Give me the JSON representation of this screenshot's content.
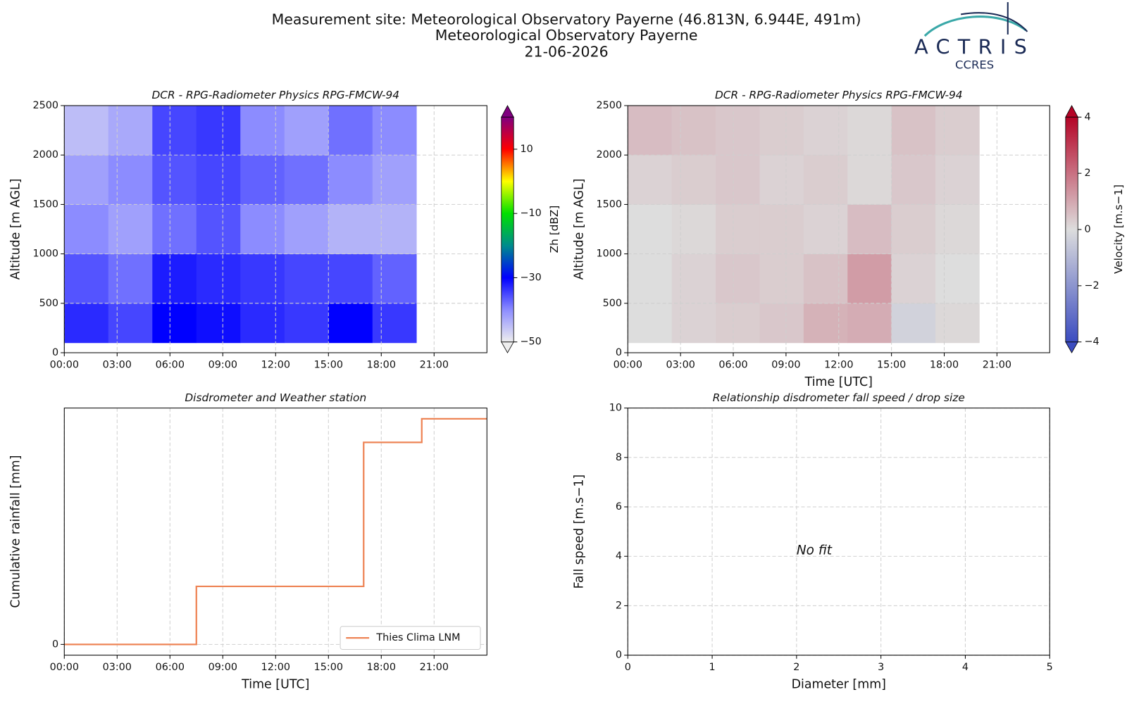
{
  "header": {
    "title_lines": [
      "Measurement site: Meteorological Observatory Payerne (46.813N, 6.944E, 491m)",
      "Meteorological Observatory Payerne",
      "21-06-2026"
    ],
    "logo": {
      "name": "ACTRIS",
      "subtitle": "CCRES"
    }
  },
  "chart_data": [
    {
      "type": "heatmap",
      "title": "DCR - RPG-Radiometer Physics RPG-FMCW-94",
      "ylabel": "Altitude [m AGL]",
      "xlim": [
        0,
        24
      ],
      "xticks": [
        {
          "value": 0,
          "label": "00:00"
        },
        {
          "value": 3,
          "label": "03:00"
        },
        {
          "value": 6,
          "label": "06:00"
        },
        {
          "value": 9,
          "label": "09:00"
        },
        {
          "value": 12,
          "label": "12:00"
        },
        {
          "value": 15,
          "label": "15:00"
        },
        {
          "value": 18,
          "label": "18:00"
        },
        {
          "value": 21,
          "label": "21:00"
        }
      ],
      "ylim": [
        0,
        2500
      ],
      "yticks": [
        0,
        500,
        1000,
        1500,
        2000,
        2500
      ],
      "grid": true,
      "x": [
        0,
        2.5,
        5,
        7.5,
        10,
        12.5,
        15,
        17.5,
        20
      ],
      "y": [
        100,
        500,
        1000,
        1500,
        2000,
        2500
      ],
      "z": [
        [
          -33,
          -35,
          -30,
          -31,
          -33,
          -34,
          -30,
          -34
        ],
        [
          -36,
          -38,
          -32,
          -33,
          -34,
          -35,
          -35,
          -37
        ],
        [
          -40,
          -42,
          -38,
          -36,
          -40,
          -42,
          -44,
          -44
        ],
        [
          -42,
          -40,
          -36,
          -35,
          -37,
          -38,
          -40,
          -42
        ],
        [
          -45,
          -43,
          -35,
          -34,
          -40,
          -42,
          -38,
          -40
        ]
      ],
      "clim": [
        -50,
        20
      ],
      "cticks": [
        {
          "value": -50,
          "label": "−50"
        },
        {
          "value": -30,
          "label": "−30"
        },
        {
          "value": -10,
          "label": "−10"
        },
        10
      ],
      "clabel": "Zh [dBZ]",
      "colormap": [
        "#eeeeee",
        "#8c8cff",
        "#0000ff",
        "#008c8c",
        "#00e000",
        "#ffff00",
        "#ff0000",
        "#800080"
      ]
    },
    {
      "type": "heatmap",
      "title": "DCR - RPG-Radiometer Physics RPG-FMCW-94",
      "ylabel": "Altitude [m AGL]",
      "xlabel": "Time [UTC]",
      "xlim": [
        0,
        24
      ],
      "xticks": [
        {
          "value": 0,
          "label": "00:00"
        },
        {
          "value": 3,
          "label": "03:00"
        },
        {
          "value": 6,
          "label": "06:00"
        },
        {
          "value": 9,
          "label": "09:00"
        },
        {
          "value": 12,
          "label": "12:00"
        },
        {
          "value": 15,
          "label": "15:00"
        },
        {
          "value": 18,
          "label": "18:00"
        },
        {
          "value": 21,
          "label": "21:00"
        }
      ],
      "ylim": [
        0,
        2500
      ],
      "yticks": [
        0,
        500,
        1000,
        1500,
        2000,
        2500
      ],
      "grid": true,
      "x": [
        0,
        2.5,
        5,
        7.5,
        10,
        12.5,
        15,
        17.5,
        20
      ],
      "y": [
        100,
        500,
        1000,
        1500,
        2000,
        2500
      ],
      "z": [
        [
          0,
          0.2,
          0.3,
          0.4,
          0.8,
          0.9,
          -0.3,
          0.1
        ],
        [
          0,
          0.2,
          0.4,
          0.3,
          0.5,
          1.2,
          0.2,
          0
        ],
        [
          0,
          0.1,
          0.3,
          0.3,
          0.2,
          0.6,
          0.3,
          0.1
        ],
        [
          0.2,
          0.3,
          0.4,
          0.2,
          0.3,
          0.1,
          0.4,
          0.2
        ],
        [
          0.6,
          0.5,
          0.4,
          0.3,
          0.2,
          0.1,
          0.5,
          0.3
        ]
      ],
      "clim": [
        -4,
        4
      ],
      "cticks": [
        {
          "value": -4,
          "label": "−4"
        },
        {
          "value": -2,
          "label": "−2"
        },
        0,
        2,
        4
      ],
      "clabel": "Velocity [m.s−1]",
      "colormap": [
        "#3b4cc0",
        "#dddddd",
        "#b40426"
      ]
    },
    {
      "type": "line",
      "title": "Disdrometer and Weather station",
      "ylabel": "Cumulative rainfall [mm]",
      "xlabel": "Time [UTC]",
      "xlim": [
        0,
        24
      ],
      "xticks": [
        {
          "value": 0,
          "label": "00:00"
        },
        {
          "value": 3,
          "label": "03:00"
        },
        {
          "value": 6,
          "label": "06:00"
        },
        {
          "value": 9,
          "label": "09:00"
        },
        {
          "value": 12,
          "label": "12:00"
        },
        {
          "value": 15,
          "label": "15:00"
        },
        {
          "value": 18,
          "label": "18:00"
        },
        {
          "value": 21,
          "label": "21:00"
        }
      ],
      "ylim": [
        -0.05,
        1.1
      ],
      "yticks": [
        0
      ],
      "grid": true,
      "legend": "lower right",
      "x": [
        0,
        7.5,
        7.5,
        17,
        17,
        20.3,
        20.3,
        24
      ],
      "series": [
        {
          "name": "Thies Clima LNM",
          "color": "#ee8455",
          "values": [
            0,
            0,
            0.27,
            0.27,
            0.94,
            0.94,
            1.05,
            1.05
          ]
        }
      ]
    },
    {
      "type": "scatter",
      "title": "Relationship disdrometer fall speed / drop size",
      "ylabel": "Fall speed [m.s−1]",
      "xlabel": "Diameter [mm]",
      "xlim": [
        0,
        5
      ],
      "xticks": [
        0,
        1,
        2,
        3,
        4,
        5
      ],
      "ylim": [
        0,
        10
      ],
      "yticks": [
        0,
        2,
        4,
        6,
        8,
        10
      ],
      "grid": true,
      "x": [],
      "values": [],
      "annotation": "No fit"
    }
  ]
}
